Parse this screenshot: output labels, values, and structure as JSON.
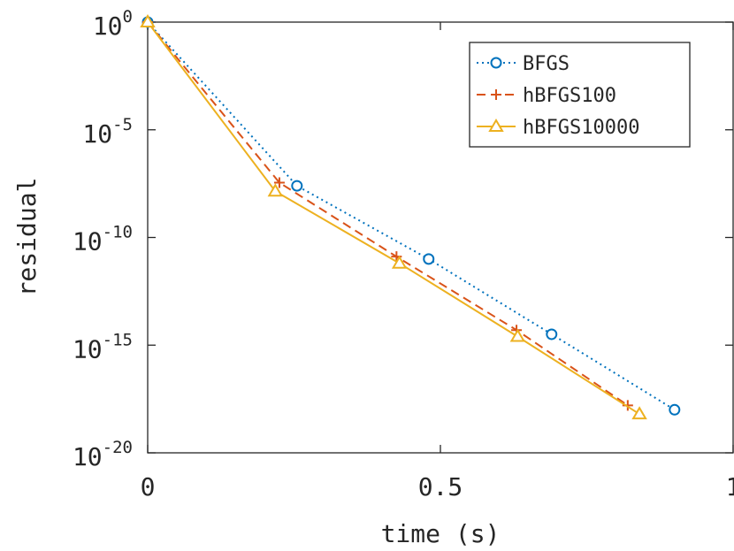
{
  "chart_data": {
    "type": "line",
    "title": "",
    "xlabel": "time (s)",
    "ylabel": "residual",
    "xlim": [
      0,
      1
    ],
    "ylim": [
      1e-20,
      1
    ],
    "y_scale": "log",
    "grid": false,
    "legend_position": "top-right",
    "x_ticks": [
      {
        "value": 0,
        "label": "0"
      },
      {
        "value": 0.5,
        "label": "0.5"
      },
      {
        "value": 1,
        "label": "1"
      }
    ],
    "y_ticks": [
      {
        "value": 1,
        "base": "10",
        "exp": "0"
      },
      {
        "value": 1e-05,
        "base": "10",
        "exp": "-5"
      },
      {
        "value": 1e-10,
        "base": "10",
        "exp": "-10"
      },
      {
        "value": 1e-15,
        "base": "10",
        "exp": "-15"
      },
      {
        "value": 1e-20,
        "base": "10",
        "exp": "-20"
      }
    ],
    "series": [
      {
        "name": "BFGS",
        "color": "#0072BD",
        "line_style": "dotted",
        "marker": "circle",
        "x": [
          0,
          0.255,
          0.48,
          0.69,
          0.9
        ],
        "y": [
          1,
          2.5e-08,
          1e-11,
          3.2e-15,
          1e-18
        ]
      },
      {
        "name": "hBFGS100",
        "color": "#D95319",
        "line_style": "dashed",
        "marker": "plus",
        "x": [
          0,
          0.225,
          0.425,
          0.63,
          0.82
        ],
        "y": [
          1,
          3.5e-08,
          1.3e-11,
          5e-15,
          1.6e-18
        ]
      },
      {
        "name": "hBFGS10000",
        "color": "#EDB120",
        "line_style": "solid",
        "marker": "triangle",
        "x": [
          0,
          0.218,
          0.43,
          0.632,
          0.84
        ],
        "y": [
          1,
          1.4e-08,
          6.3e-12,
          2.5e-15,
          6.3e-19
        ]
      }
    ]
  }
}
